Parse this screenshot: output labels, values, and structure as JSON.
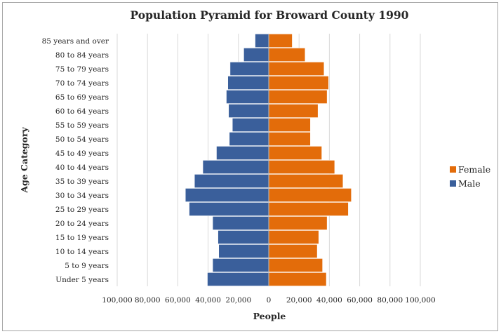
{
  "chart_data": {
    "type": "bar",
    "orientation": "horizontal",
    "title": "Population Pyramid for Broward County 1990",
    "xlabel": "People",
    "ylabel": "Age Category",
    "xlim": [
      -100000,
      100000
    ],
    "xticks": [
      -100000,
      -80000,
      -60000,
      -40000,
      -20000,
      0,
      20000,
      40000,
      60000,
      80000,
      100000
    ],
    "xtick_labels": [
      "100,000",
      "80,000",
      "60,000",
      "40,000",
      "20,000",
      "0",
      "20,000",
      "40,000",
      "60,000",
      "80,000",
      "100,000"
    ],
    "grid": "vertical",
    "legend_position": "right",
    "categories": [
      "Under 5 years",
      "5 to 9 years",
      "10 to 14 years",
      "15 to 19 years",
      "20 to 24 years",
      "25 to 29 years",
      "30 to 34 years",
      "35 to 39 years",
      "40 to 44 years",
      "45 to 49 years",
      "50 to 54 years",
      "55 to 59 years",
      "60 to 64 years",
      "65 to 69 years",
      "70 to 74 years",
      "75 to 79 years",
      "80 to 84 years",
      "85 years and over"
    ],
    "series": [
      {
        "name": "Female",
        "color": "#e36c0a",
        "values": [
          38000,
          35500,
          32000,
          33000,
          38500,
          52500,
          54500,
          49000,
          43500,
          35000,
          27500,
          27500,
          32500,
          38500,
          39500,
          36500,
          24000,
          15500
        ]
      },
      {
        "name": "Male",
        "color": "#3a5f9b",
        "values": [
          40500,
          37000,
          33000,
          33500,
          37000,
          52500,
          55000,
          49000,
          43500,
          34500,
          26000,
          24000,
          26500,
          28000,
          27000,
          25500,
          16500,
          9000
        ]
      }
    ]
  }
}
